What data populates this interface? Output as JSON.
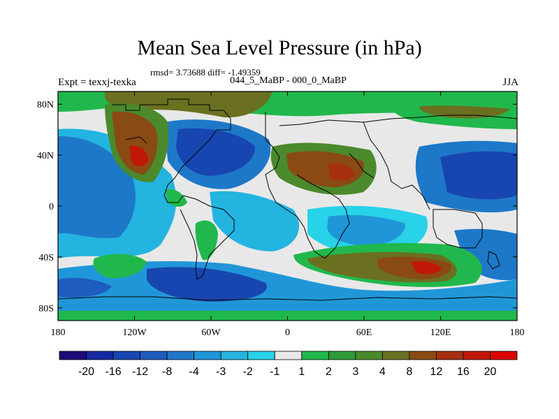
{
  "title": "Mean Sea Level Pressure (in hPa)",
  "stats_line": "rmsd= 3.73688 diff= -1.49359",
  "left_label": "Expt = texxj-texka",
  "center_label": "044_5_MaBP - 000_0_MaBP",
  "right_label": "JJA",
  "map_data": {
    "type": "contour-map",
    "field": "Mean Sea Level Pressure difference",
    "units": "hPa",
    "lon_range": [
      -180,
      180
    ],
    "lat_range": [
      -90,
      90
    ],
    "lon_ticks": [
      "180",
      "120W",
      "60W",
      "0",
      "60E",
      "120E",
      "180"
    ],
    "lat_ticks": [
      "80N",
      "40N",
      "0",
      "40S",
      "80S"
    ],
    "colorbar": {
      "labels": [
        "-20",
        "-16",
        "-12",
        "-8",
        "-4",
        "-3",
        "-2",
        "-1",
        "1",
        "2",
        "3",
        "4",
        "8",
        "12",
        "16",
        "20"
      ],
      "colors": [
        "#1e0a78",
        "#1428a0",
        "#1846b0",
        "#1e5cc0",
        "#1e78c8",
        "#2096d8",
        "#24b4e0",
        "#28d2e8",
        "#e8e8e8",
        "#20b84c",
        "#2e9a38",
        "#4a8a2c",
        "#6a7020",
        "#8a4a14",
        "#a43010",
        "#c01808",
        "#d80000"
      ]
    }
  }
}
